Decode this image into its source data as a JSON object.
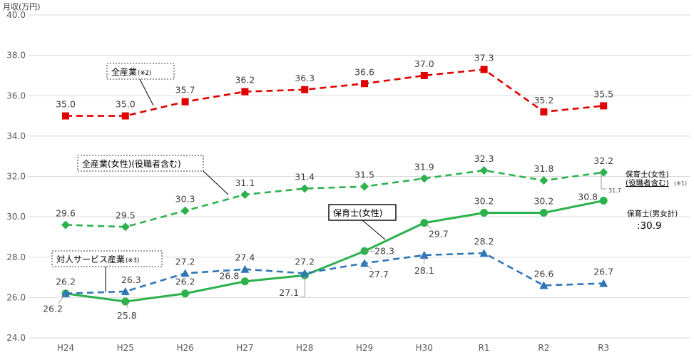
{
  "chart_data": {
    "type": "line",
    "ylabel": "月収(万円)",
    "ylim": [
      24.0,
      40.0
    ],
    "yticks": [
      "24.0",
      "26.0",
      "28.0",
      "30.0",
      "32.0",
      "34.0",
      "36.0",
      "38.0",
      "40.0"
    ],
    "grid": true,
    "categories": [
      "H24",
      "H25",
      "H26",
      "H27",
      "H28",
      "H29",
      "H30",
      "R1",
      "R2",
      "R3"
    ],
    "series": [
      {
        "name": "全産業",
        "note": "(※2)",
        "color": "#e00000",
        "style": "dashed",
        "marker": "square",
        "values": [
          35.0,
          35.0,
          35.7,
          36.2,
          36.3,
          36.6,
          37.0,
          37.3,
          35.2,
          35.5
        ],
        "labels": [
          "35.0",
          "35.0",
          "35.7",
          "36.2",
          "36.3",
          "36.6",
          "37.0",
          "37.3",
          "35.2",
          "35.5"
        ]
      },
      {
        "name": "全産業(女性)(役職者含む)",
        "color": "#2bb24c",
        "style": "dashed",
        "marker": "diamond",
        "values": [
          29.6,
          29.5,
          30.3,
          31.1,
          31.4,
          31.5,
          31.9,
          32.3,
          31.8,
          32.2
        ],
        "labels": [
          "29.6",
          "29.5",
          "30.3",
          "31.1",
          "31.4",
          "31.5",
          "31.9",
          "32.3",
          "31.8",
          "32.2"
        ]
      },
      {
        "name": "保育士(女性)",
        "color": "#2bb24c",
        "style": "solid",
        "marker": "circle",
        "values": [
          26.2,
          25.8,
          26.2,
          26.8,
          27.1,
          28.3,
          29.7,
          30.2,
          30.2,
          30.8
        ],
        "labels": [
          "26.2",
          "25.8",
          "26.2",
          "26.8",
          "27.1",
          "28.3",
          "29.7",
          "30.2",
          "30.2",
          "30.8"
        ]
      },
      {
        "name": "対人サービス産業",
        "note": "(※3)",
        "color": "#2e75b6",
        "style": "dashed",
        "marker": "triangle",
        "values": [
          26.2,
          26.3,
          27.2,
          27.4,
          27.2,
          27.7,
          28.1,
          28.2,
          26.6,
          26.7
        ],
        "labels": [
          "26.2",
          "26.3",
          "27.2",
          "27.4",
          "27.2",
          "27.7",
          "28.1",
          "28.2",
          "26.6",
          "26.7"
        ]
      }
    ],
    "annotations": {
      "nursery_female_incl_mgr": {
        "line1": "保育士(女性)",
        "line2": "(役職者含む)",
        "note": "(※1)",
        "value": "31.7"
      },
      "nursery_all": {
        "label": "保育士(男女計)",
        "value": ":30.9"
      }
    }
  }
}
